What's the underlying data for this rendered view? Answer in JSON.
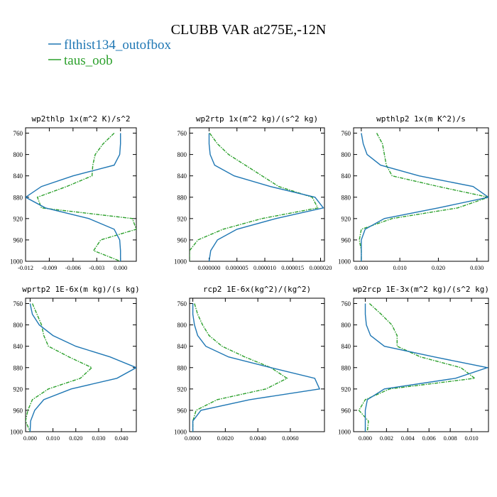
{
  "figure": {
    "title": "CLUBB VAR at275E,-12N",
    "legend": [
      {
        "label": "flthist134_outofbox",
        "color": "#1f77b4"
      },
      {
        "label": "taus_oob",
        "color": "#2ca02c"
      }
    ]
  },
  "chart_data": [
    {
      "type": "line",
      "title": "wp2thlp  1x(m^2 K)/s^2",
      "ylim": [
        1000,
        750
      ],
      "xlim": [
        -0.012,
        0.002
      ],
      "yticks": [
        760,
        800,
        840,
        880,
        920,
        960,
        1000
      ],
      "xtick_values": [
        -0.012,
        -0.009,
        -0.006,
        -0.003,
        0.0
      ],
      "xtick_labels": [
        "-0.012",
        "-0.009",
        "-0.006",
        "-0.003",
        "0.000"
      ],
      "y": [
        760,
        780,
        800,
        820,
        840,
        860,
        880,
        900,
        920,
        940,
        960,
        980,
        1000
      ],
      "series": [
        {
          "name": "flthist134_outofbox",
          "values": [
            0.0,
            0.0,
            -0.0001,
            -0.0008,
            -0.006,
            -0.01,
            -0.012,
            -0.0095,
            -0.004,
            -0.0008,
            -0.0001,
            0.0,
            0.0
          ],
          "color": "#1f77b4",
          "dash": "solid"
        },
        {
          "name": "taus_oob",
          "values": [
            -0.0008,
            -0.0022,
            -0.0032,
            -0.0035,
            -0.0036,
            -0.0068,
            -0.0105,
            -0.01,
            0.0015,
            0.002,
            -0.0025,
            -0.0034,
            0.0
          ]
        }
      ]
    },
    {
      "type": "line",
      "title": "wp2rtp  1x(m^2 kg)/(s^2 kg)",
      "ylim": [
        1000,
        750
      ],
      "xlim": [
        -3.5e-06,
        2.07e-05
      ],
      "yticks": [
        760,
        800,
        840,
        880,
        920,
        960,
        1000
      ],
      "xtick_values": [
        0.0,
        5e-06,
        1e-05,
        1.5e-05,
        2e-05
      ],
      "xtick_labels": [
        "0.000000",
        "0.000005",
        "0.000010",
        "0.000015",
        "0.000020"
      ],
      "y": [
        760,
        780,
        800,
        820,
        840,
        860,
        880,
        900,
        920,
        940,
        960,
        980,
        1000
      ],
      "series": [
        {
          "name": "flthist134_outofbox",
          "values": [
            0.0,
            0.0,
            2e-07,
            1e-06,
            4.5e-06,
            1.1e-05,
            1.9e-05,
            2.05e-05,
            1.2e-05,
            5e-06,
            1.5e-06,
            3e-07,
            0.0
          ],
          "color": "#1f77b4",
          "dash": "solid"
        },
        {
          "name": "taus_oob",
          "values": [
            1e-07,
            1.5e-06,
            3.5e-06,
            6.5e-06,
            9.5e-06,
            1.25e-05,
            1.85e-05,
            1.95e-05,
            9.5e-06,
            2.5e-06,
            -2e-06,
            -3.5e-06,
            -3.5e-06
          ]
        }
      ]
    },
    {
      "type": "line",
      "title": "wpthlp2  1x(m K^2)/s",
      "ylim": [
        1000,
        750
      ],
      "xlim": [
        -0.002,
        0.033
      ],
      "yticks": [
        760,
        800,
        840,
        880,
        920,
        960,
        1000
      ],
      "xtick_values": [
        0.0,
        0.01,
        0.02,
        0.03
      ],
      "xtick_labels": [
        "0.000",
        "0.010",
        "0.020",
        "0.030"
      ],
      "y": [
        760,
        780,
        800,
        820,
        840,
        860,
        880,
        900,
        920,
        940,
        960,
        980,
        1000
      ],
      "series": [
        {
          "name": "flthist134_outofbox",
          "values": [
            0.0,
            0.0005,
            0.0015,
            0.005,
            0.015,
            0.029,
            0.033,
            0.02,
            0.006,
            0.001,
            0.0,
            0.0,
            0.0
          ],
          "color": "#1f77b4",
          "dash": "solid"
        },
        {
          "name": "taus_oob",
          "values": [
            0.004,
            0.0055,
            0.006,
            0.0065,
            0.008,
            0.02,
            0.033,
            0.025,
            0.008,
            0.0,
            -0.0005,
            0.0,
            0.0
          ]
        }
      ]
    },
    {
      "type": "line",
      "title": "wprtp2  1E-6x(m kg)/(s kg)",
      "ylim": [
        1000,
        750
      ],
      "xlim": [
        -0.002,
        0.0465
      ],
      "yticks": [
        760,
        800,
        840,
        880,
        920,
        960,
        1000
      ],
      "xtick_values": [
        0.0,
        0.01,
        0.02,
        0.03,
        0.04
      ],
      "xtick_labels": [
        "0.000",
        "0.010",
        "0.020",
        "0.030",
        "0.040"
      ],
      "y": [
        760,
        780,
        800,
        820,
        840,
        860,
        880,
        900,
        920,
        940,
        960,
        980,
        1000
      ],
      "series": [
        {
          "name": "flthist134_outofbox",
          "values": [
            0.0,
            0.001,
            0.004,
            0.01,
            0.02,
            0.035,
            0.0465,
            0.038,
            0.018,
            0.006,
            0.002,
            0.0002,
            0.0
          ],
          "color": "#1f77b4",
          "dash": "solid"
        },
        {
          "name": "taus_oob",
          "values": [
            0.001,
            0.003,
            0.005,
            0.006,
            0.008,
            0.017,
            0.027,
            0.022,
            0.008,
            0.001,
            -0.001,
            -0.002,
            0.0
          ]
        }
      ]
    },
    {
      "type": "line",
      "title": "rcp2  1E-6x(kg^2)/(kg^2)",
      "ylim": [
        1000,
        750
      ],
      "xlim": [
        -0.0002,
        0.0081
      ],
      "yticks": [
        760,
        800,
        840,
        880,
        920,
        960,
        1000
      ],
      "xtick_values": [
        0.0,
        0.002,
        0.004,
        0.006
      ],
      "xtick_labels": [
        "0.0000",
        "0.0020",
        "0.0040",
        "0.0060"
      ],
      "y": [
        760,
        780,
        800,
        820,
        840,
        860,
        880,
        900,
        920,
        940,
        960,
        980,
        1000
      ],
      "series": [
        {
          "name": "flthist134_outofbox",
          "values": [
            0.0,
            0.0,
            0.0001,
            0.0003,
            0.0008,
            0.0022,
            0.0048,
            0.0075,
            0.0078,
            0.0035,
            0.0005,
            0.0,
            0.0
          ],
          "color": "#1f77b4",
          "dash": "solid"
        },
        {
          "name": "taus_oob",
          "values": [
            0.0001,
            0.0003,
            0.0006,
            0.001,
            0.0018,
            0.0032,
            0.0048,
            0.0058,
            0.0045,
            0.0015,
            0.0002,
            0.0,
            0.0
          ]
        }
      ]
    },
    {
      "type": "line",
      "title": "wp2rcp  1E-3x(m^2 kg)/(s^2 kg)",
      "ylim": [
        1000,
        750
      ],
      "xlim": [
        -0.0011,
        0.0116
      ],
      "yticks": [
        760,
        800,
        840,
        880,
        920,
        960,
        1000
      ],
      "xtick_values": [
        0.0,
        0.002,
        0.004,
        0.006,
        0.008,
        0.01
      ],
      "xtick_labels": [
        "0.000",
        "0.002",
        "0.004",
        "0.006",
        "0.008",
        "0.010"
      ],
      "y": [
        760,
        780,
        800,
        820,
        840,
        860,
        880,
        900,
        920,
        940,
        960,
        980,
        1000
      ],
      "series": [
        {
          "name": "flthist134_outofbox",
          "values": [
            0.0,
            0.0,
            0.0001,
            0.0005,
            0.0018,
            0.0065,
            0.0115,
            0.0085,
            0.0018,
            0.0002,
            0.0,
            0.0,
            0.0
          ],
          "color": "#1f77b4",
          "dash": "solid"
        },
        {
          "name": "taus_oob",
          "values": [
            0.0004,
            0.0015,
            0.0025,
            0.003,
            0.003,
            0.0052,
            0.009,
            0.0103,
            0.0023,
            0.0,
            -0.0006,
            0.0003,
            0.0002
          ]
        }
      ]
    }
  ]
}
